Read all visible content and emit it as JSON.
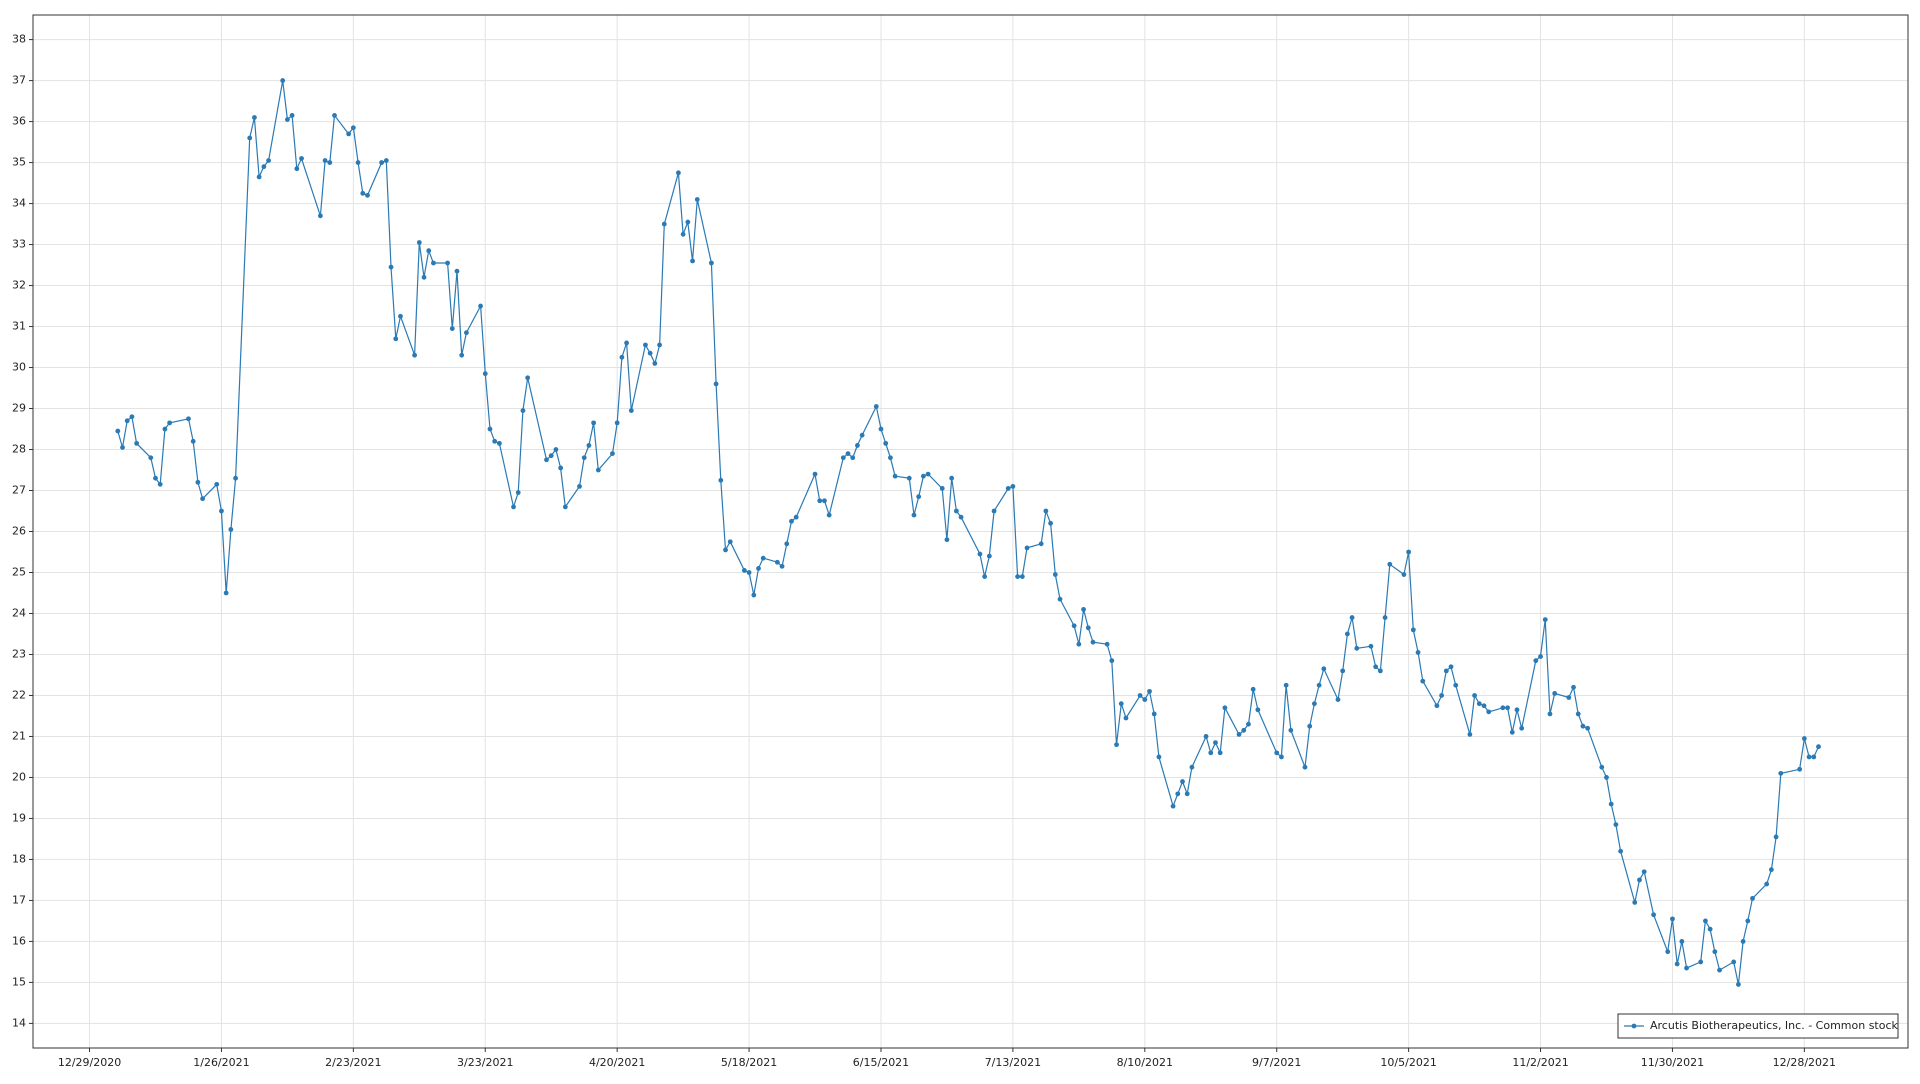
{
  "chart_data": {
    "type": "line",
    "x": [
      "1/4/2021",
      "1/5/2021",
      "1/6/2021",
      "1/7/2021",
      "1/8/2021",
      "1/11/2021",
      "1/12/2021",
      "1/13/2021",
      "1/14/2021",
      "1/15/2021",
      "1/19/2021",
      "1/20/2021",
      "1/21/2021",
      "1/22/2021",
      "1/25/2021",
      "1/26/2021",
      "1/27/2021",
      "1/28/2021",
      "1/29/2021",
      "2/1/2021",
      "2/2/2021",
      "2/3/2021",
      "2/4/2021",
      "2/5/2021",
      "2/8/2021",
      "2/9/2021",
      "2/10/2021",
      "2/11/2021",
      "2/12/2021",
      "2/16/2021",
      "2/17/2021",
      "2/18/2021",
      "2/19/2021",
      "2/22/2021",
      "2/23/2021",
      "2/24/2021",
      "2/25/2021",
      "2/26/2021",
      "3/1/2021",
      "3/2/2021",
      "3/3/2021",
      "3/4/2021",
      "3/5/2021",
      "3/8/2021",
      "3/9/2021",
      "3/10/2021",
      "3/11/2021",
      "3/12/2021",
      "3/15/2021",
      "3/16/2021",
      "3/17/2021",
      "3/18/2021",
      "3/19/2021",
      "3/22/2021",
      "3/23/2021",
      "3/24/2021",
      "3/25/2021",
      "3/26/2021",
      "3/29/2021",
      "3/30/2021",
      "3/31/2021",
      "4/1/2021",
      "4/5/2021",
      "4/6/2021",
      "4/7/2021",
      "4/8/2021",
      "4/9/2021",
      "4/12/2021",
      "4/13/2021",
      "4/14/2021",
      "4/15/2021",
      "4/16/2021",
      "4/19/2021",
      "4/20/2021",
      "4/21/2021",
      "4/22/2021",
      "4/23/2021",
      "4/26/2021",
      "4/27/2021",
      "4/28/2021",
      "4/29/2021",
      "4/30/2021",
      "5/3/2021",
      "5/4/2021",
      "5/5/2021",
      "5/6/2021",
      "5/7/2021",
      "5/10/2021",
      "5/11/2021",
      "5/12/2021",
      "5/13/2021",
      "5/14/2021",
      "5/17/2021",
      "5/18/2021",
      "5/19/2021",
      "5/20/2021",
      "5/21/2021",
      "5/24/2021",
      "5/25/2021",
      "5/26/2021",
      "5/27/2021",
      "5/28/2021",
      "6/1/2021",
      "6/2/2021",
      "6/3/2021",
      "6/4/2021",
      "6/7/2021",
      "6/8/2021",
      "6/9/2021",
      "6/10/2021",
      "6/11/2021",
      "6/14/2021",
      "6/15/2021",
      "6/16/2021",
      "6/17/2021",
      "6/18/2021",
      "6/21/2021",
      "6/22/2021",
      "6/23/2021",
      "6/24/2021",
      "6/25/2021",
      "6/28/2021",
      "6/29/2021",
      "6/30/2021",
      "7/1/2021",
      "7/2/2021",
      "7/6/2021",
      "7/7/2021",
      "7/8/2021",
      "7/9/2021",
      "7/12/2021",
      "7/13/2021",
      "7/14/2021",
      "7/15/2021",
      "7/16/2021",
      "7/19/2021",
      "7/20/2021",
      "7/21/2021",
      "7/22/2021",
      "7/23/2021",
      "7/26/2021",
      "7/27/2021",
      "7/28/2021",
      "7/29/2021",
      "7/30/2021",
      "8/2/2021",
      "8/3/2021",
      "8/4/2021",
      "8/5/2021",
      "8/6/2021",
      "8/9/2021",
      "8/10/2021",
      "8/11/2021",
      "8/12/2021",
      "8/13/2021",
      "8/16/2021",
      "8/17/2021",
      "8/18/2021",
      "8/19/2021",
      "8/20/2021",
      "8/23/2021",
      "8/24/2021",
      "8/25/2021",
      "8/26/2021",
      "8/27/2021",
      "8/30/2021",
      "8/31/2021",
      "9/1/2021",
      "9/2/2021",
      "9/3/2021",
      "9/7/2021",
      "9/8/2021",
      "9/9/2021",
      "9/10/2021",
      "9/13/2021",
      "9/14/2021",
      "9/15/2021",
      "9/16/2021",
      "9/17/2021",
      "9/20/2021",
      "9/21/2021",
      "9/22/2021",
      "9/23/2021",
      "9/24/2021",
      "9/27/2021",
      "9/28/2021",
      "9/29/2021",
      "9/30/2021",
      "10/1/2021",
      "10/4/2021",
      "10/5/2021",
      "10/6/2021",
      "10/7/2021",
      "10/8/2021",
      "10/11/2021",
      "10/12/2021",
      "10/13/2021",
      "10/14/2021",
      "10/15/2021",
      "10/18/2021",
      "10/19/2021",
      "10/20/2021",
      "10/21/2021",
      "10/22/2021",
      "10/25/2021",
      "10/26/2021",
      "10/27/2021",
      "10/28/2021",
      "10/29/2021",
      "11/1/2021",
      "11/2/2021",
      "11/3/2021",
      "11/4/2021",
      "11/5/2021",
      "11/8/2021",
      "11/9/2021",
      "11/10/2021",
      "11/11/2021",
      "11/12/2021",
      "11/15/2021",
      "11/16/2021",
      "11/17/2021",
      "11/18/2021",
      "11/19/2021",
      "11/22/2021",
      "11/23/2021",
      "11/24/2021",
      "11/26/2021",
      "11/29/2021",
      "11/30/2021",
      "12/1/2021",
      "12/2/2021",
      "12/3/2021",
      "12/6/2021",
      "12/7/2021",
      "12/8/2021",
      "12/9/2021",
      "12/10/2021",
      "12/13/2021",
      "12/14/2021",
      "12/15/2021",
      "12/16/2021",
      "12/17/2021",
      "12/20/2021",
      "12/21/2021",
      "12/22/2021",
      "12/23/2021",
      "12/27/2021",
      "12/28/2021",
      "12/29/2021",
      "12/30/2021",
      "12/31/2021"
    ],
    "series": [
      {
        "name": "Arcutis Biotherapeutics, Inc. - Common stock",
        "color": "#2a7ab5",
        "values": [
          28.45,
          28.05,
          28.7,
          28.8,
          28.15,
          27.8,
          27.3,
          27.15,
          28.5,
          28.65,
          28.75,
          28.2,
          27.2,
          26.8,
          27.15,
          26.5,
          24.5,
          26.05,
          27.3,
          35.6,
          36.1,
          34.65,
          34.9,
          35.05,
          37.0,
          36.05,
          36.15,
          34.85,
          35.1,
          33.7,
          35.05,
          35.0,
          36.15,
          35.7,
          35.85,
          35.0,
          34.25,
          34.2,
          35.0,
          35.05,
          32.45,
          30.7,
          31.25,
          30.3,
          33.05,
          32.2,
          32.85,
          32.55,
          32.55,
          30.95,
          32.35,
          30.3,
          30.85,
          31.5,
          29.85,
          28.5,
          28.2,
          28.15,
          26.6,
          26.95,
          28.95,
          29.75,
          27.75,
          27.85,
          28.0,
          27.55,
          26.6,
          27.1,
          27.8,
          28.1,
          28.65,
          27.5,
          27.9,
          28.65,
          30.25,
          30.6,
          28.95,
          30.55,
          30.35,
          30.1,
          30.55,
          33.5,
          34.75,
          33.25,
          33.55,
          32.6,
          34.1,
          32.55,
          29.6,
          27.25,
          25.55,
          25.75,
          25.05,
          25.0,
          24.45,
          25.1,
          25.35,
          25.25,
          25.15,
          25.7,
          26.25,
          26.35,
          27.4,
          26.75,
          26.75,
          26.4,
          27.8,
          27.9,
          27.8,
          28.1,
          28.35,
          29.05,
          28.5,
          28.15,
          27.8,
          27.35,
          27.3,
          26.4,
          26.85,
          27.35,
          27.4,
          27.05,
          25.8,
          27.3,
          26.5,
          26.35,
          25.45,
          24.9,
          25.4,
          26.5,
          27.05,
          27.1,
          24.9,
          24.9,
          25.6,
          25.7,
          26.5,
          26.2,
          24.95,
          24.35,
          23.7,
          23.25,
          24.1,
          23.65,
          23.3,
          23.25,
          22.85,
          20.8,
          21.8,
          21.45,
          22.0,
          21.9,
          22.1,
          21.55,
          20.5,
          19.3,
          19.6,
          19.9,
          19.6,
          20.25,
          21.0,
          20.6,
          20.85,
          20.6,
          21.7,
          21.05,
          21.15,
          21.3,
          22.15,
          21.65,
          20.6,
          20.5,
          22.25,
          21.15,
          20.25,
          21.25,
          21.8,
          22.25,
          22.65,
          21.9,
          22.6,
          23.5,
          23.9,
          23.15,
          23.2,
          22.7,
          22.6,
          23.9,
          25.2,
          24.95,
          25.5,
          23.6,
          23.05,
          22.35,
          21.75,
          22.0,
          22.6,
          22.7,
          22.25,
          21.05,
          22.0,
          21.8,
          21.75,
          21.6,
          21.7,
          21.7,
          21.1,
          21.65,
          21.2,
          22.85,
          22.95,
          23.85,
          21.55,
          22.05,
          21.95,
          22.2,
          21.55,
          21.25,
          21.2,
          20.25,
          20.0,
          19.35,
          18.85,
          18.2,
          16.95,
          17.5,
          17.7,
          16.65,
          15.75,
          16.55,
          15.45,
          16.0,
          15.35,
          15.5,
          16.5,
          16.3,
          15.75,
          15.3,
          15.5,
          14.95,
          16.0,
          16.5,
          17.05,
          17.4,
          17.75,
          18.55,
          20.1,
          20.2,
          20.95,
          20.5,
          20.5,
          20.75
        ]
      }
    ],
    "xlim": [
      "12/17/2020",
      "1/19/2022"
    ],
    "xticks": [
      "12/29/2020",
      "1/26/2021",
      "2/23/2021",
      "3/23/2021",
      "4/20/2021",
      "5/18/2021",
      "6/15/2021",
      "7/13/2021",
      "8/10/2021",
      "9/7/2021",
      "10/5/2021",
      "11/2/2021",
      "11/30/2021",
      "12/28/2021"
    ],
    "ylim": [
      13.4,
      38.6
    ],
    "yticks": [
      14,
      15,
      16,
      17,
      18,
      19,
      20,
      21,
      22,
      23,
      24,
      25,
      26,
      27,
      28,
      29,
      30,
      31,
      32,
      33,
      34,
      35,
      36,
      37,
      38
    ],
    "grid": true,
    "legend": "lower right"
  }
}
